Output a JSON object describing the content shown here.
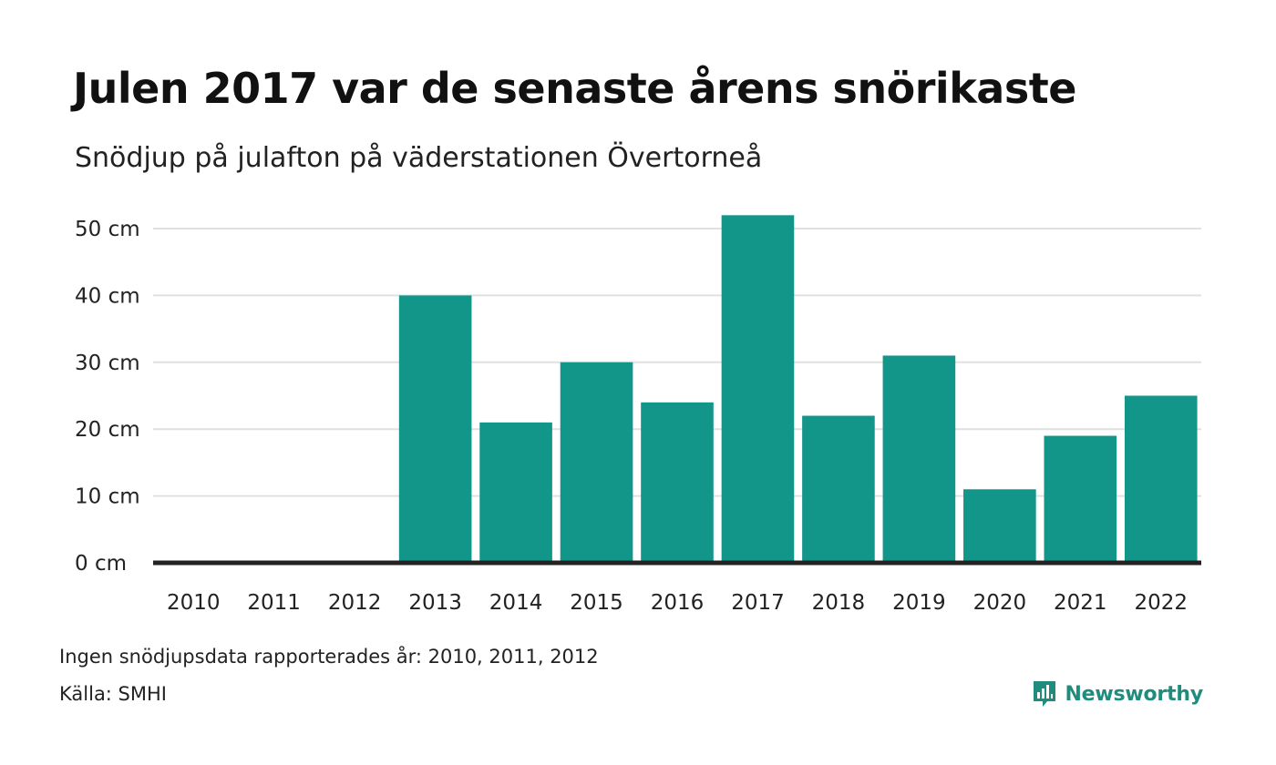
{
  "header": {
    "title": "Julen 2017 var de senaste årens snörikaste",
    "subtitle": "Snödjup på julafton på väderstationen Övertorneå"
  },
  "notes": {
    "missing_data": "Ingen snödjupsdata rapporterades år: 2010, 2011, 2012",
    "source": "Källa: SMHI"
  },
  "brand": {
    "name": "Newsworthy",
    "icon": "newsworthy-bar-chart-icon",
    "color": "#1f8c7d"
  },
  "chart_data": {
    "type": "bar",
    "categories": [
      "2010",
      "2011",
      "2012",
      "2013",
      "2014",
      "2015",
      "2016",
      "2017",
      "2018",
      "2019",
      "2020",
      "2021",
      "2022"
    ],
    "values": [
      null,
      null,
      null,
      40,
      21,
      30,
      24,
      52,
      22,
      31,
      11,
      19,
      25
    ],
    "unit": "cm",
    "ylim": [
      0,
      50
    ],
    "yticks": [
      0,
      10,
      20,
      30,
      40,
      50
    ],
    "ytick_labels": [
      "0 cm",
      "10 cm",
      "20 cm",
      "30 cm",
      "40 cm",
      "50 cm"
    ],
    "grid": true,
    "legend": "none",
    "bar_color": "#13968a",
    "grid_color": "#e0e0e0",
    "baseline_color": "#222222"
  }
}
